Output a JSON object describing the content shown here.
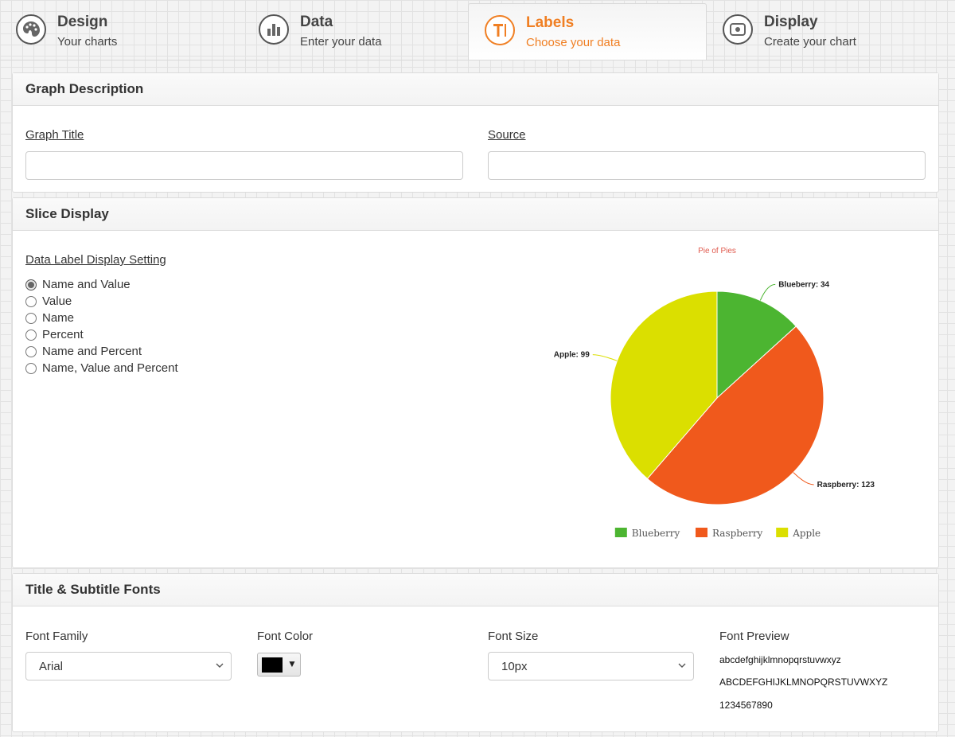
{
  "tabs": [
    {
      "title": "Design",
      "subtitle": "Your charts",
      "icon": "palette-icon",
      "active": false
    },
    {
      "title": "Data",
      "subtitle": "Enter your data",
      "icon": "bar-chart-icon",
      "active": false
    },
    {
      "title": "Labels",
      "subtitle": "Choose your data",
      "icon": "text-label-icon",
      "active": true
    },
    {
      "title": "Display",
      "subtitle": "Create your chart",
      "icon": "display-icon",
      "active": false
    }
  ],
  "graph_description": {
    "heading": "Graph Description",
    "title_label": "Graph Title",
    "title_value": "",
    "source_label": "Source",
    "source_value": ""
  },
  "slice_display": {
    "heading": "Slice Display",
    "setting_label": "Data Label Display Setting",
    "options": [
      "Name and Value",
      "Value",
      "Name",
      "Percent",
      "Name and Percent",
      "Name, Value and Percent"
    ],
    "selected_index": 0
  },
  "chart_data": {
    "type": "pie",
    "title": "Pie of Pies",
    "categories": [
      "Blueberry",
      "Raspberry",
      "Apple"
    ],
    "values": [
      34,
      123,
      99
    ],
    "colors": [
      "#4cb531",
      "#f0591c",
      "#dbdf00"
    ],
    "data_labels": [
      "Blueberry: 34",
      "Raspberry: 123",
      "Apple: 99"
    ],
    "legend_position": "bottom"
  },
  "fonts": {
    "heading": "Title & Subtitle Fonts",
    "family_label": "Font Family",
    "family_value": "Arial",
    "color_label": "Font Color",
    "color_value": "#000000",
    "size_label": "Font Size",
    "size_value": "10px",
    "preview_label": "Font Preview",
    "preview_lines": [
      "abcdefghijklmnopqrstuvwxyz",
      "ABCDEFGHIJKLMNOPQRSTUVWXYZ",
      "1234567890"
    ]
  },
  "colors": {
    "accent": "#f07f23"
  }
}
